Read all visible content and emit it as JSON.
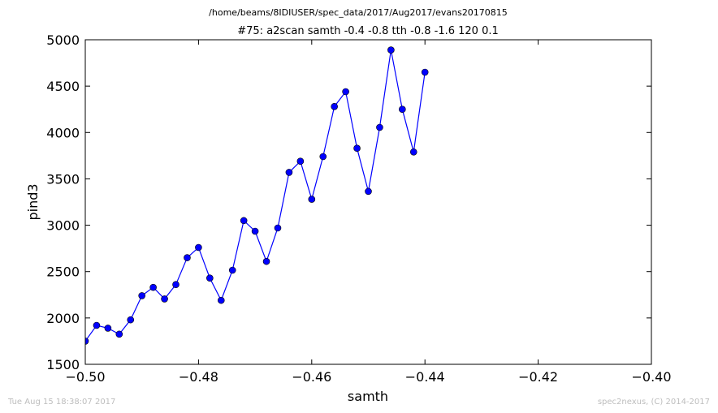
{
  "header": {
    "path": "/home/beams/8IDIUSER/spec_data/2017/Aug2017/evans20170815",
    "scan_title": "#75: a2scan  samth -0.4 -0.8  tth -0.8 -1.6  120 0.1"
  },
  "footer": {
    "timestamp": "Tue Aug 15 18:38:07 2017",
    "credit": "spec2nexus, (C) 2014-2017"
  },
  "chart_data": {
    "type": "line",
    "title": "#75: a2scan  samth -0.4 -0.8  tth -0.8 -1.6  120 0.1",
    "xlabel": "samth",
    "ylabel": "pind3",
    "xlim": [
      -0.5,
      -0.4
    ],
    "ylim": [
      1500,
      5000
    ],
    "xticks": [
      -0.5,
      -0.48,
      -0.46,
      -0.44,
      -0.42,
      -0.4
    ],
    "xtick_labels": [
      "−0.50",
      "−0.48",
      "−0.46",
      "−0.44",
      "−0.42",
      "−0.40"
    ],
    "yticks": [
      1500,
      2000,
      2500,
      3000,
      3500,
      4000,
      4500,
      5000
    ],
    "ytick_labels": [
      "1500",
      "2000",
      "2500",
      "3000",
      "3500",
      "4000",
      "4500",
      "5000"
    ],
    "grid": false,
    "series": [
      {
        "color": "#0000ff",
        "marker": "circle",
        "x": [
          -0.5,
          -0.498,
          -0.496,
          -0.494,
          -0.492,
          -0.49,
          -0.488,
          -0.486,
          -0.484,
          -0.482,
          -0.48,
          -0.478,
          -0.476,
          -0.474,
          -0.472,
          -0.47,
          -0.468,
          -0.466,
          -0.464,
          -0.462,
          -0.46,
          -0.458,
          -0.456,
          -0.454,
          -0.452,
          -0.45,
          -0.448,
          -0.446,
          -0.444,
          -0.442,
          -0.44
        ],
        "y": [
          1750,
          1920,
          1890,
          1825,
          1980,
          2240,
          2330,
          2205,
          2360,
          2650,
          2760,
          2430,
          2190,
          2515,
          3050,
          2935,
          2610,
          2970,
          3570,
          3690,
          3280,
          3740,
          4280,
          4440,
          3830,
          3365,
          4055,
          4890,
          4250,
          3790,
          4650
        ]
      }
    ]
  }
}
